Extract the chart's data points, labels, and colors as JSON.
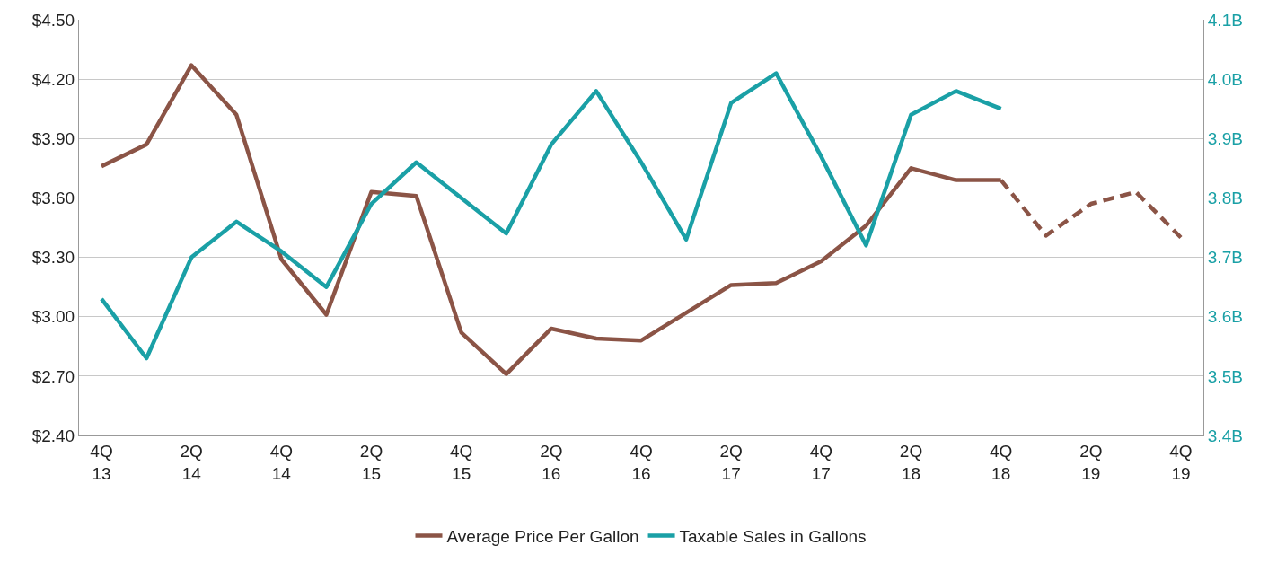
{
  "chart_data": {
    "type": "line",
    "categories": [
      "4Q\n13",
      null,
      "2Q\n14",
      null,
      "4Q\n14",
      null,
      "2Q\n15",
      null,
      "4Q\n15",
      null,
      "2Q\n16",
      null,
      "4Q\n16",
      null,
      "2Q\n17",
      null,
      "4Q\n17",
      null,
      "2Q\n18",
      null,
      "4Q\n18",
      null,
      "2Q\n19",
      null,
      "4Q\n19"
    ],
    "series": [
      {
        "name": "Average Price Per Gallon",
        "color": "#8b5446",
        "line_style": "solid",
        "values": [
          3.76,
          3.87,
          4.27,
          4.02,
          3.29,
          3.01,
          3.63,
          3.61,
          2.92,
          2.71,
          2.94,
          2.89,
          2.88,
          3.02,
          3.16,
          3.17,
          3.28,
          3.46,
          3.75,
          3.69,
          3.69,
          null,
          null,
          null,
          null
        ]
      },
      {
        "name": "Taxable Sales in Gallons",
        "color": "#1aa0a6",
        "line_style": "solid",
        "axis": "y2",
        "values": [
          3.63,
          3.53,
          3.7,
          3.76,
          3.71,
          3.65,
          3.79,
          3.86,
          3.8,
          3.74,
          3.89,
          3.98,
          3.86,
          3.73,
          3.96,
          4.01,
          3.87,
          3.72,
          3.94,
          3.98,
          3.95,
          null,
          null,
          null,
          null
        ]
      },
      {
        "color": "#8b5446",
        "line_style": "dashed",
        "values": [
          null,
          null,
          null,
          null,
          null,
          null,
          null,
          null,
          null,
          null,
          null,
          null,
          null,
          null,
          null,
          null,
          null,
          null,
          null,
          null,
          3.69,
          3.41,
          3.57,
          3.63,
          3.4
        ]
      }
    ],
    "ylim": [
      2.4,
      4.5
    ],
    "yticks": [
      {
        "value": 2.4,
        "label": "$2.40"
      },
      {
        "value": 2.7,
        "label": "$2.70"
      },
      {
        "value": 3.0,
        "label": "$3.00"
      },
      {
        "value": 3.3,
        "label": "$3.30"
      },
      {
        "value": 3.6,
        "label": "$3.60"
      },
      {
        "value": 3.9,
        "label": "$3.90"
      },
      {
        "value": 4.2,
        "label": "$4.20"
      },
      {
        "value": 4.5,
        "label": "$4.50"
      }
    ],
    "y2lim": [
      3.4,
      4.1
    ],
    "y2ticks": [
      {
        "value": 3.4,
        "label": "3.4B"
      },
      {
        "value": 3.5,
        "label": "3.5B"
      },
      {
        "value": 3.6,
        "label": "3.6B"
      },
      {
        "value": 3.7,
        "label": "3.7B"
      },
      {
        "value": 3.8,
        "label": "3.8B"
      },
      {
        "value": 3.9,
        "label": "3.9B"
      },
      {
        "value": 4.0,
        "label": "4.0B"
      },
      {
        "value": 4.1,
        "label": "4.1B"
      }
    ],
    "grid": "y",
    "legend": "bottom",
    "marker": "none"
  }
}
